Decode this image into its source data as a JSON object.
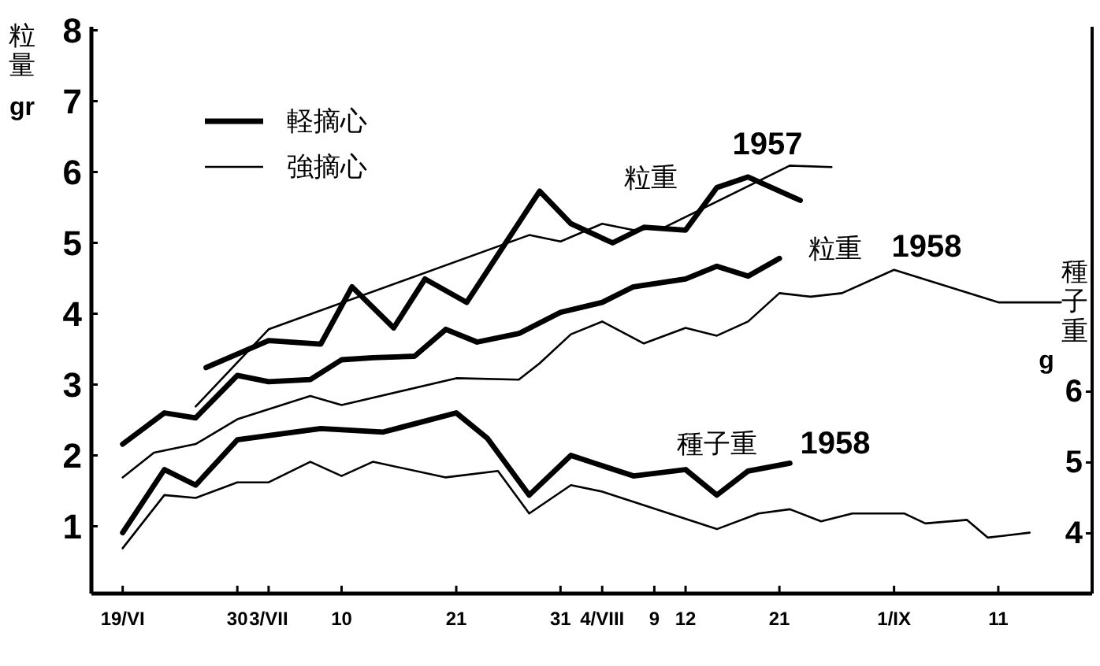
{
  "chart_data": {
    "type": "line",
    "xlim": [
      "--06-16",
      "--09-20"
    ],
    "xticks": [
      {
        "value": "--06-19",
        "label": "19/VI"
      },
      {
        "value": "--06-30",
        "label": "30"
      },
      {
        "value": "--07-03",
        "label": "3/VII"
      },
      {
        "value": "--07-10",
        "label": "10"
      },
      {
        "value": "--07-21",
        "label": "21"
      },
      {
        "value": "--07-31",
        "label": "31"
      },
      {
        "value": "--08-04",
        "label": "4/VIII"
      },
      {
        "value": "--08-09",
        "label": "9"
      },
      {
        "value": "--08-12",
        "label": "12"
      },
      {
        "value": "--08-21",
        "label": "21"
      },
      {
        "value": "--09-01",
        "label": "1/IX"
      },
      {
        "value": "--09-11",
        "label": "11"
      }
    ],
    "ylim": [
      0.05,
      8.05
    ],
    "yticks": [
      1,
      2,
      3,
      4,
      5,
      6,
      7,
      8
    ],
    "y2lim": [
      3.15,
      11.15
    ],
    "y2ticks": [
      4,
      5,
      6
    ],
    "ylabel": "粒量 gr",
    "y2label": "種子重 g",
    "legend": "top left",
    "series": [
      {
        "name": "軽摘心",
        "color": "#000000",
        "x": [
          "--06-27",
          "--07-03",
          "--07-08",
          "--07-11",
          "--07-15",
          "--07-18",
          "--07-22",
          "--07-29",
          "--08-01",
          "--08-05",
          "--08-08",
          "--08-12",
          "--08-15",
          "--08-18",
          "--08-23"
        ],
        "values": [
          3.24,
          3.62,
          3.57,
          4.38,
          3.8,
          4.49,
          4.16,
          5.73,
          5.27,
          5.0,
          5.22,
          5.18,
          5.78,
          5.93,
          5.6
        ]
      },
      {
        "name": "強摘心",
        "color": "#000000",
        "x": [
          "--06-26",
          "--07-03",
          "--07-28",
          "--07-31",
          "--08-04",
          "--08-07",
          "--08-10",
          "--08-22",
          "--08-26"
        ],
        "values": [
          2.69,
          3.78,
          5.11,
          5.02,
          5.27,
          5.18,
          5.22,
          6.09,
          6.07
        ]
      },
      {
        "color": "#000000",
        "x": [
          "--06-19",
          "--06-23",
          "--06-26",
          "--06-30",
          "--07-03",
          "--07-07",
          "--07-10",
          "--07-13",
          "--07-17",
          "--07-20",
          "--07-23",
          "--07-27",
          "--07-31",
          "--08-04",
          "--08-07",
          "--08-12",
          "--08-15",
          "--08-18",
          "--08-21"
        ],
        "values": [
          2.16,
          2.6,
          2.53,
          3.13,
          3.04,
          3.07,
          3.35,
          3.38,
          3.4,
          3.78,
          3.6,
          3.72,
          4.02,
          4.16,
          4.38,
          4.49,
          4.67,
          4.53,
          4.78
        ]
      },
      {
        "color": "#000000",
        "x": [
          "--06-19",
          "--06-22",
          "--06-26",
          "--06-30",
          "--07-07",
          "--07-10",
          "--07-21",
          "--07-27",
          "--07-29",
          "--08-01",
          "--08-04",
          "--08-08",
          "--08-12",
          "--08-15",
          "--08-18",
          "--08-21",
          "--08-24",
          "--08-27",
          "--09-01",
          "--09-11",
          "--09-17"
        ],
        "values": [
          1.69,
          2.04,
          2.16,
          2.51,
          2.84,
          2.71,
          3.09,
          3.07,
          3.3,
          3.71,
          3.89,
          3.58,
          3.8,
          3.69,
          3.89,
          4.29,
          4.24,
          4.29,
          4.62,
          4.16,
          4.16
        ]
      },
      {
        "color": "#000000",
        "axis": "y2",
        "x": [
          "--06-19",
          "--06-23",
          "--06-26",
          "--06-30",
          "--07-08",
          "--07-14",
          "--07-21",
          "--07-24",
          "--07-28",
          "--08-01",
          "--08-07",
          "--08-12",
          "--08-15",
          "--08-18",
          "--08-22"
        ],
        "values": [
          4.01,
          4.9,
          4.68,
          5.32,
          5.48,
          5.43,
          5.7,
          5.34,
          4.54,
          5.1,
          4.81,
          4.9,
          4.54,
          4.88,
          4.99
        ]
      },
      {
        "color": "#000000",
        "axis": "y2",
        "x": [
          "--06-19",
          "--06-23",
          "--06-26",
          "--06-30",
          "--07-03",
          "--07-07",
          "--07-10",
          "--07-13",
          "--07-20",
          "--07-25",
          "--07-28",
          "--08-01",
          "--08-04",
          "--08-15",
          "--08-19",
          "--08-22",
          "--08-25",
          "--08-28",
          "--09-02",
          "--09-04",
          "--09-08",
          "--09-10",
          "--09-14"
        ],
        "values": [
          3.79,
          4.54,
          4.5,
          4.72,
          4.72,
          5.01,
          4.81,
          5.01,
          4.79,
          4.88,
          4.28,
          4.68,
          4.59,
          4.06,
          4.28,
          4.34,
          4.17,
          4.28,
          4.28,
          4.14,
          4.19,
          3.94,
          4.01
        ]
      }
    ],
    "annotations": [
      "粒重",
      "1957",
      "粒重",
      "1958",
      "種子重",
      "1958"
    ]
  }
}
